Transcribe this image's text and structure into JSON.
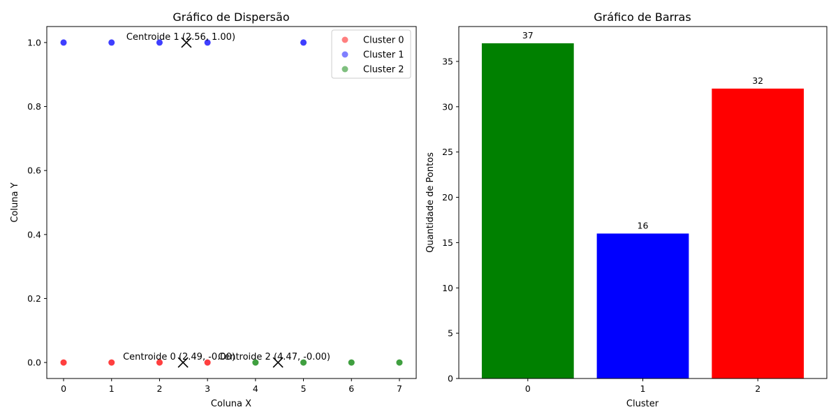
{
  "chart_data": [
    {
      "type": "scatter",
      "title": "Gráfico de Dispersão",
      "xlabel": "Coluna X",
      "ylabel": "Coluna Y",
      "xlim": [
        -0.35,
        7.35
      ],
      "ylim": [
        -0.05,
        1.05
      ],
      "xticks": [
        "0",
        "1",
        "2",
        "3",
        "4",
        "5",
        "6",
        "7"
      ],
      "yticks": [
        "0.0",
        "0.2",
        "0.4",
        "0.6",
        "0.8",
        "1.0"
      ],
      "legend_position": "top-right",
      "series": [
        {
          "name": "Cluster 0",
          "color": "#ff0000",
          "points": [
            [
              0,
              0
            ],
            [
              1,
              0
            ],
            [
              2,
              0
            ],
            [
              3,
              0
            ]
          ]
        },
        {
          "name": "Cluster 1",
          "color": "#0000ff",
          "points": [
            [
              0,
              1
            ],
            [
              1,
              1
            ],
            [
              2,
              1
            ],
            [
              3,
              1
            ],
            [
              5,
              1
            ]
          ]
        },
        {
          "name": "Cluster 2",
          "color": "#008000",
          "points": [
            [
              4,
              0
            ],
            [
              5,
              0
            ],
            [
              6,
              0
            ],
            [
              7,
              0
            ]
          ]
        }
      ],
      "centroids": [
        {
          "label": "Centroide 0 (2.49, -0.00)",
          "x": 2.49,
          "y": 0.0
        },
        {
          "label": "Centroide 1 (2.56, 1.00)",
          "x": 2.56,
          "y": 1.0
        },
        {
          "label": "Centroide 2 (4.47, -0.00)",
          "x": 4.47,
          "y": 0.0
        }
      ]
    },
    {
      "type": "bar",
      "title": "Gráfico de Barras",
      "xlabel": "Cluster",
      "ylabel": "Quantidade de Pontos",
      "categories": [
        "0",
        "1",
        "2"
      ],
      "values": [
        37,
        16,
        32
      ],
      "colors": [
        "#008000",
        "#0000ff",
        "#ff0000"
      ],
      "ylim": [
        0,
        38.85
      ],
      "yticks": [
        "0",
        "5",
        "10",
        "15",
        "20",
        "25",
        "30",
        "35"
      ]
    }
  ]
}
